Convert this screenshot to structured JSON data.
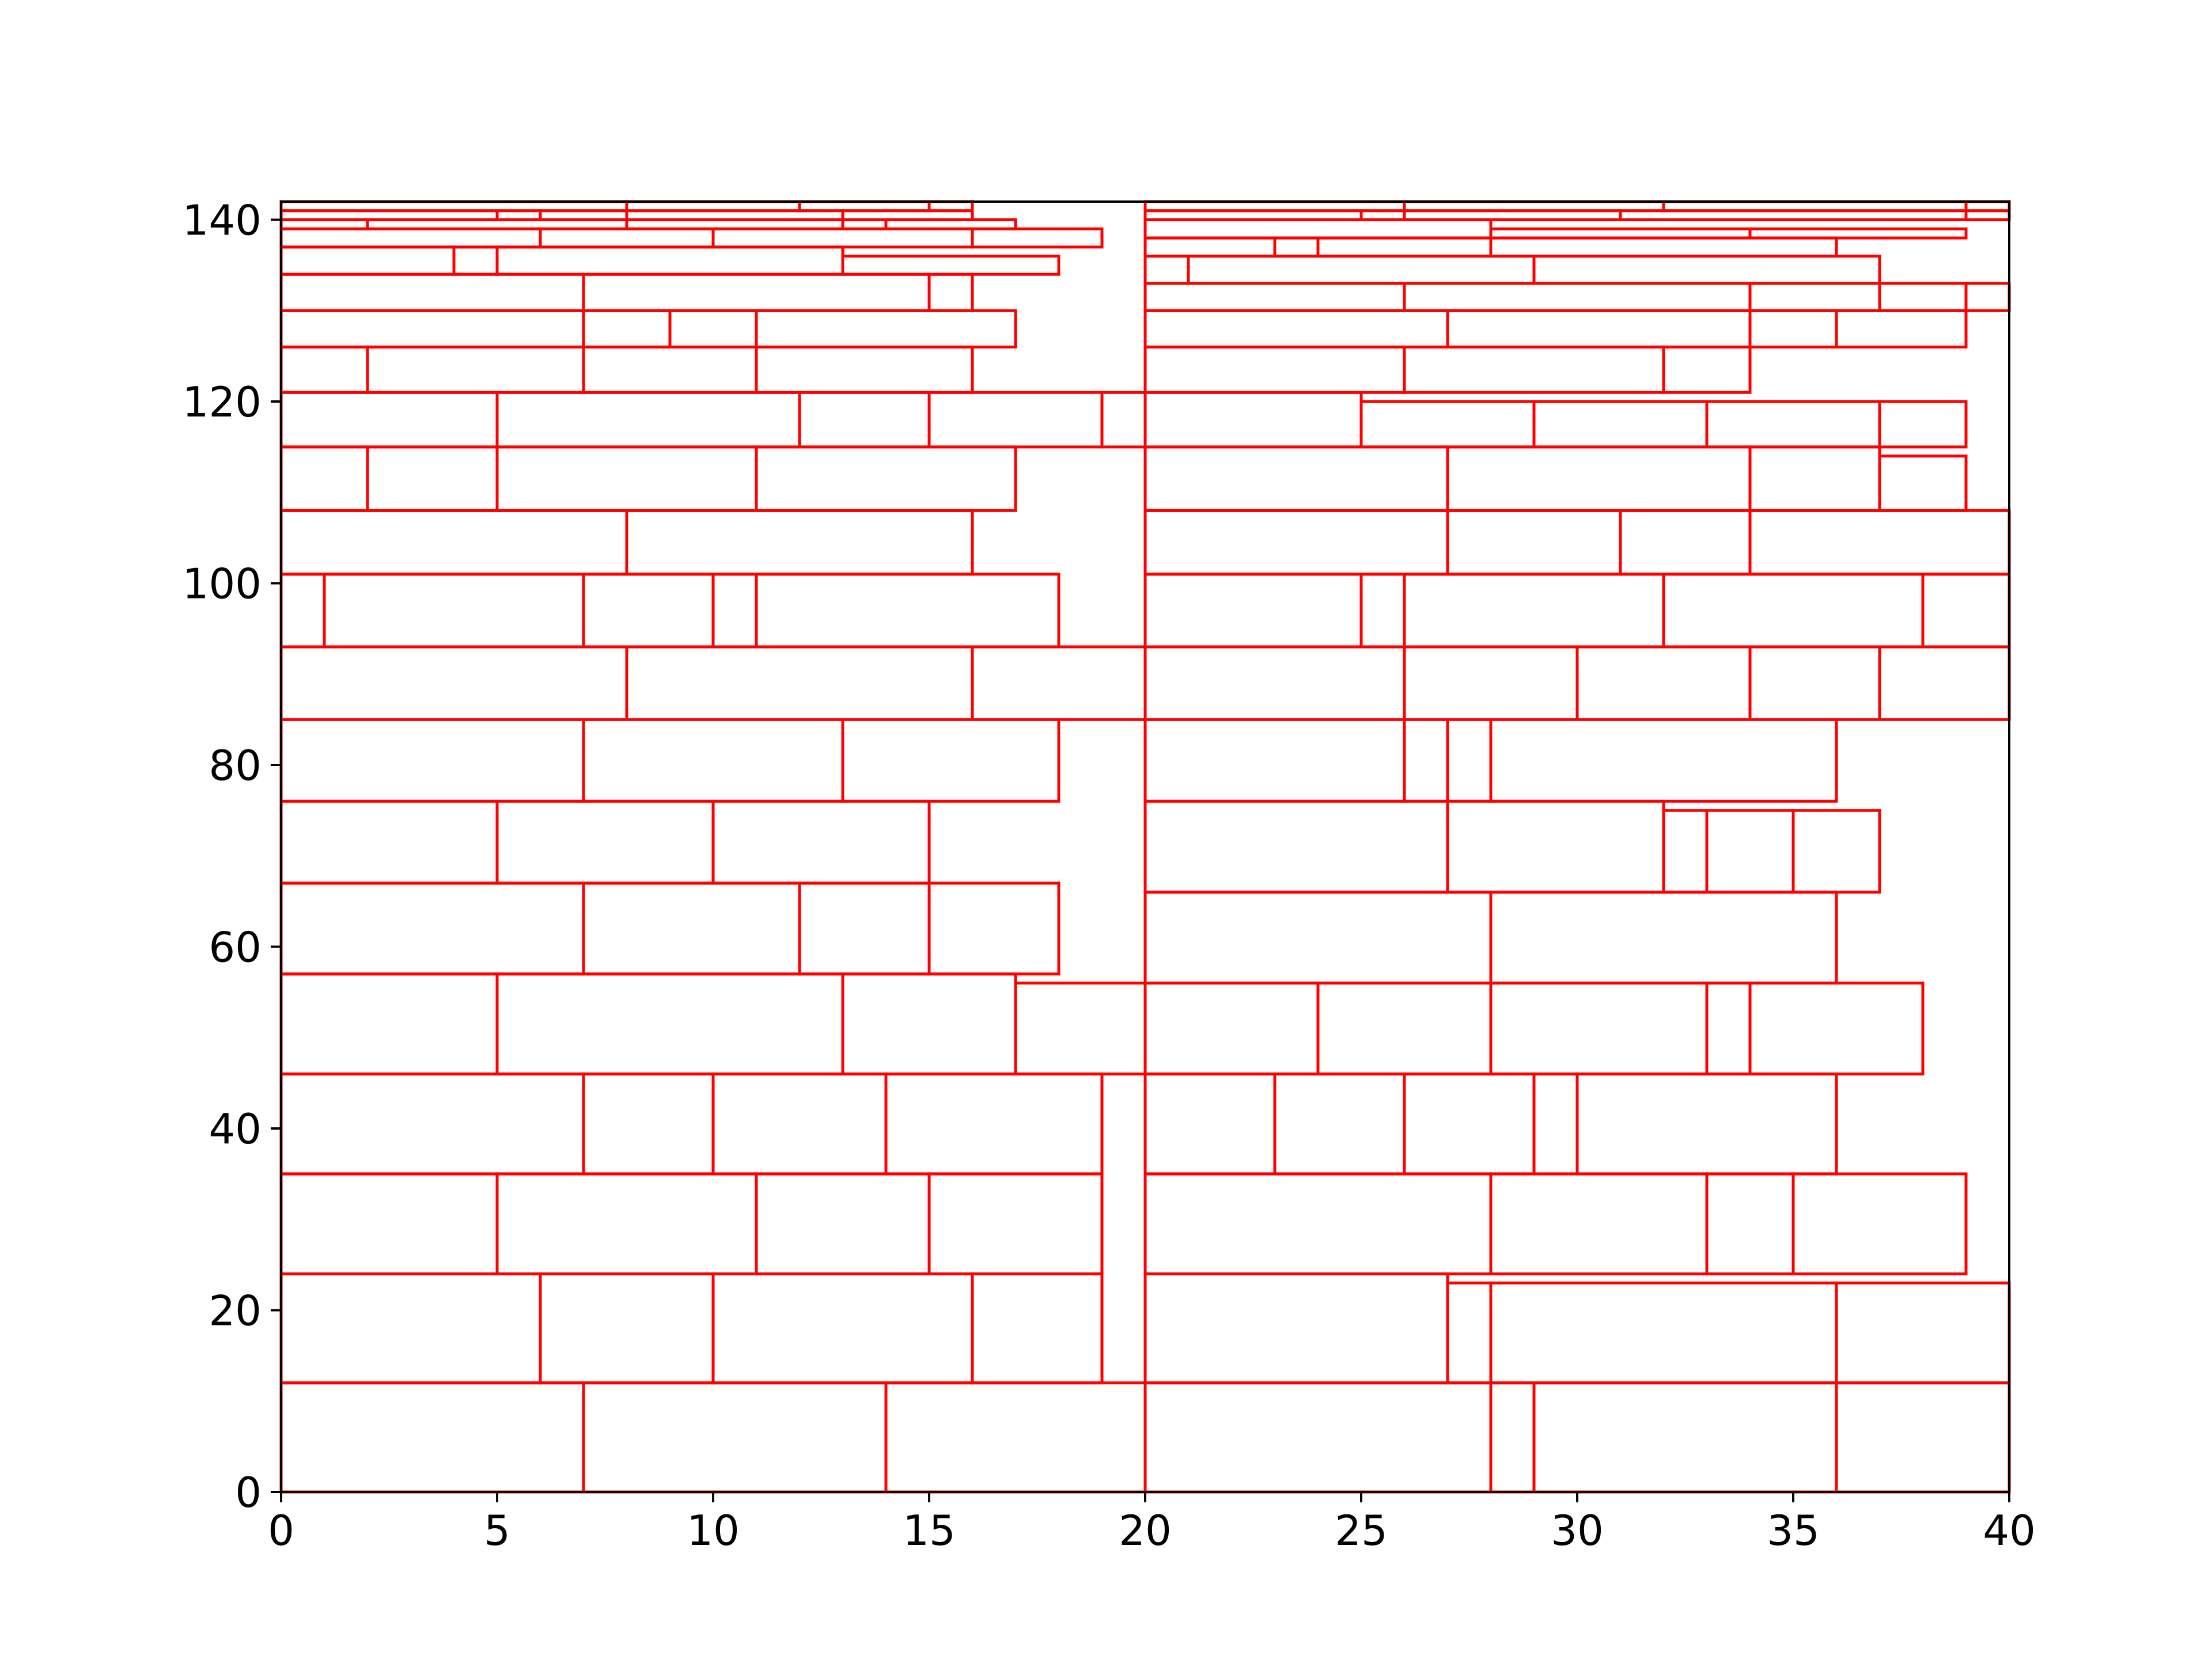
{
  "chart_data": {
    "type": "rectangle-packing",
    "title": "",
    "xlabel": "",
    "ylabel": "",
    "xlim": [
      0,
      40
    ],
    "ylim": [
      0,
      142
    ],
    "xticks": [
      0,
      5,
      10,
      15,
      20,
      25,
      30,
      35,
      40
    ],
    "yticks": [
      0,
      20,
      40,
      60,
      80,
      100,
      120,
      140
    ],
    "grid": false,
    "legend": "none",
    "edge_color": "#ff0000",
    "rects": [
      [
        0,
        0,
        7,
        12
      ],
      [
        7,
        0,
        7,
        12
      ],
      [
        14,
        0,
        6,
        12
      ],
      [
        0,
        12,
        6,
        12
      ],
      [
        6,
        12,
        4,
        12
      ],
      [
        10,
        12,
        6,
        12
      ],
      [
        16,
        12,
        3,
        12
      ],
      [
        0,
        24,
        5,
        11
      ],
      [
        5,
        24,
        6,
        11
      ],
      [
        11,
        24,
        4,
        11
      ],
      [
        15,
        24,
        4,
        11
      ],
      [
        0,
        35,
        7,
        11
      ],
      [
        7,
        35,
        3,
        11
      ],
      [
        10,
        35,
        4,
        11
      ],
      [
        14,
        35,
        5,
        11
      ],
      [
        0,
        46,
        5,
        11
      ],
      [
        5,
        46,
        8,
        11
      ],
      [
        13,
        46,
        4,
        11
      ],
      [
        17,
        46,
        3,
        10
      ],
      [
        0,
        57,
        7,
        10
      ],
      [
        7,
        57,
        5,
        10
      ],
      [
        12,
        57,
        3,
        10
      ],
      [
        15,
        57,
        3,
        10
      ],
      [
        0,
        67,
        5,
        9
      ],
      [
        5,
        67,
        5,
        9
      ],
      [
        10,
        67,
        5,
        9
      ],
      [
        0,
        76,
        7,
        9
      ],
      [
        7,
        76,
        6,
        9
      ],
      [
        13,
        76,
        5,
        9
      ],
      [
        0,
        85,
        8,
        8
      ],
      [
        8,
        85,
        8,
        8
      ],
      [
        16,
        85,
        4,
        8
      ],
      [
        0,
        93,
        1,
        8
      ],
      [
        1,
        93,
        6,
        8
      ],
      [
        7,
        93,
        3,
        8
      ],
      [
        10,
        93,
        1,
        8
      ],
      [
        11,
        93,
        7,
        8
      ],
      [
        0,
        101,
        8,
        7
      ],
      [
        8,
        101,
        8,
        7
      ],
      [
        0,
        108,
        2,
        7
      ],
      [
        2,
        108,
        3,
        7
      ],
      [
        5,
        108,
        6,
        7
      ],
      [
        11,
        108,
        6,
        7
      ],
      [
        0,
        115,
        5,
        6
      ],
      [
        5,
        115,
        7,
        6
      ],
      [
        12,
        115,
        3,
        6
      ],
      [
        15,
        115,
        4,
        6
      ],
      [
        19,
        115,
        1,
        6
      ],
      [
        0,
        121,
        2,
        5
      ],
      [
        2,
        121,
        5,
        5
      ],
      [
        7,
        121,
        4,
        5
      ],
      [
        11,
        121,
        5,
        5
      ],
      [
        0,
        126,
        7,
        4
      ],
      [
        7,
        126,
        2,
        4
      ],
      [
        9,
        126,
        2,
        4
      ],
      [
        11,
        126,
        6,
        4
      ],
      [
        0,
        130,
        7,
        4
      ],
      [
        7,
        130,
        8,
        4
      ],
      [
        15,
        130,
        1,
        4
      ],
      [
        0,
        134,
        4,
        3
      ],
      [
        4,
        134,
        1,
        3
      ],
      [
        5,
        134,
        8,
        3
      ],
      [
        13,
        134,
        5,
        2
      ],
      [
        0,
        137,
        6,
        2
      ],
      [
        6,
        137,
        4,
        2
      ],
      [
        10,
        137,
        6,
        2
      ],
      [
        16,
        137,
        3,
        2
      ],
      [
        0,
        139,
        2,
        1
      ],
      [
        2,
        139,
        6,
        1
      ],
      [
        8,
        139,
        5,
        1
      ],
      [
        13,
        139,
        1,
        1
      ],
      [
        14,
        139,
        3,
        1
      ],
      [
        0,
        140,
        5,
        1
      ],
      [
        5,
        140,
        1,
        1
      ],
      [
        6,
        140,
        2,
        1
      ],
      [
        8,
        140,
        5,
        1
      ],
      [
        13,
        140,
        3,
        1
      ],
      [
        0,
        141,
        8,
        1
      ],
      [
        8,
        141,
        4,
        1
      ],
      [
        12,
        141,
        3,
        1
      ],
      [
        15,
        141,
        1,
        1
      ],
      [
        20,
        0,
        8,
        12
      ],
      [
        28,
        0,
        1,
        12
      ],
      [
        29,
        0,
        7,
        12
      ],
      [
        36,
        0,
        4,
        12
      ],
      [
        20,
        12,
        7,
        12
      ],
      [
        27,
        12,
        1,
        11
      ],
      [
        28,
        12,
        8,
        11
      ],
      [
        36,
        12,
        4,
        11
      ],
      [
        20,
        24,
        8,
        11
      ],
      [
        28,
        24,
        5,
        11
      ],
      [
        33,
        24,
        2,
        11
      ],
      [
        35,
        24,
        4,
        11
      ],
      [
        20,
        35,
        3,
        11
      ],
      [
        23,
        35,
        3,
        11
      ],
      [
        26,
        35,
        3,
        11
      ],
      [
        29,
        35,
        1,
        11
      ],
      [
        30,
        35,
        6,
        11
      ],
      [
        20,
        46,
        4,
        10
      ],
      [
        24,
        46,
        4,
        10
      ],
      [
        28,
        46,
        5,
        10
      ],
      [
        33,
        46,
        1,
        10
      ],
      [
        34,
        46,
        4,
        10
      ],
      [
        20,
        56,
        8,
        10
      ],
      [
        28,
        56,
        8,
        10
      ],
      [
        20,
        66,
        7,
        10
      ],
      [
        27,
        66,
        5,
        10
      ],
      [
        32,
        66,
        1,
        9
      ],
      [
        33,
        66,
        2,
        9
      ],
      [
        35,
        66,
        2,
        9
      ],
      [
        20,
        76,
        6,
        9
      ],
      [
        26,
        76,
        1,
        9
      ],
      [
        27,
        76,
        1,
        9
      ],
      [
        28,
        76,
        8,
        9
      ],
      [
        20,
        85,
        6,
        8
      ],
      [
        26,
        85,
        4,
        8
      ],
      [
        30,
        85,
        4,
        8
      ],
      [
        34,
        85,
        3,
        8
      ],
      [
        37,
        85,
        3,
        8
      ],
      [
        20,
        93,
        5,
        8
      ],
      [
        25,
        93,
        1,
        8
      ],
      [
        26,
        93,
        6,
        8
      ],
      [
        32,
        93,
        6,
        8
      ],
      [
        38,
        93,
        2,
        8
      ],
      [
        20,
        101,
        7,
        7
      ],
      [
        27,
        101,
        4,
        7
      ],
      [
        31,
        101,
        3,
        7
      ],
      [
        34,
        101,
        6,
        7
      ],
      [
        20,
        108,
        7,
        7
      ],
      [
        27,
        108,
        7,
        7
      ],
      [
        34,
        108,
        3,
        7
      ],
      [
        37,
        108,
        2,
        6
      ],
      [
        20,
        115,
        5,
        6
      ],
      [
        25,
        115,
        4,
        5
      ],
      [
        29,
        115,
        4,
        5
      ],
      [
        33,
        115,
        4,
        5
      ],
      [
        37,
        115,
        2,
        5
      ],
      [
        20,
        121,
        6,
        5
      ],
      [
        26,
        121,
        6,
        5
      ],
      [
        32,
        121,
        2,
        5
      ],
      [
        20,
        126,
        7,
        4
      ],
      [
        27,
        126,
        7,
        4
      ],
      [
        34,
        126,
        2,
        4
      ],
      [
        36,
        126,
        3,
        4
      ],
      [
        20,
        130,
        6,
        3
      ],
      [
        26,
        130,
        8,
        3
      ],
      [
        34,
        130,
        3,
        3
      ],
      [
        37,
        130,
        2,
        3
      ],
      [
        39,
        130,
        1,
        3
      ],
      [
        20,
        133,
        1,
        3
      ],
      [
        21,
        133,
        8,
        3
      ],
      [
        29,
        133,
        8,
        3
      ],
      [
        20,
        136,
        3,
        2
      ],
      [
        23,
        136,
        1,
        2
      ],
      [
        24,
        136,
        4,
        2
      ],
      [
        28,
        136,
        8,
        2
      ],
      [
        20,
        138,
        8,
        2
      ],
      [
        28,
        138,
        6,
        1
      ],
      [
        34,
        138,
        5,
        1
      ],
      [
        20,
        140,
        5,
        1
      ],
      [
        25,
        140,
        1,
        1
      ],
      [
        26,
        140,
        5,
        1
      ],
      [
        31,
        140,
        8,
        1
      ],
      [
        39,
        140,
        1,
        1
      ],
      [
        20,
        141,
        6,
        1
      ],
      [
        26,
        141,
        6,
        1
      ],
      [
        32,
        141,
        7,
        1
      ],
      [
        39,
        141,
        1,
        1
      ]
    ]
  }
}
